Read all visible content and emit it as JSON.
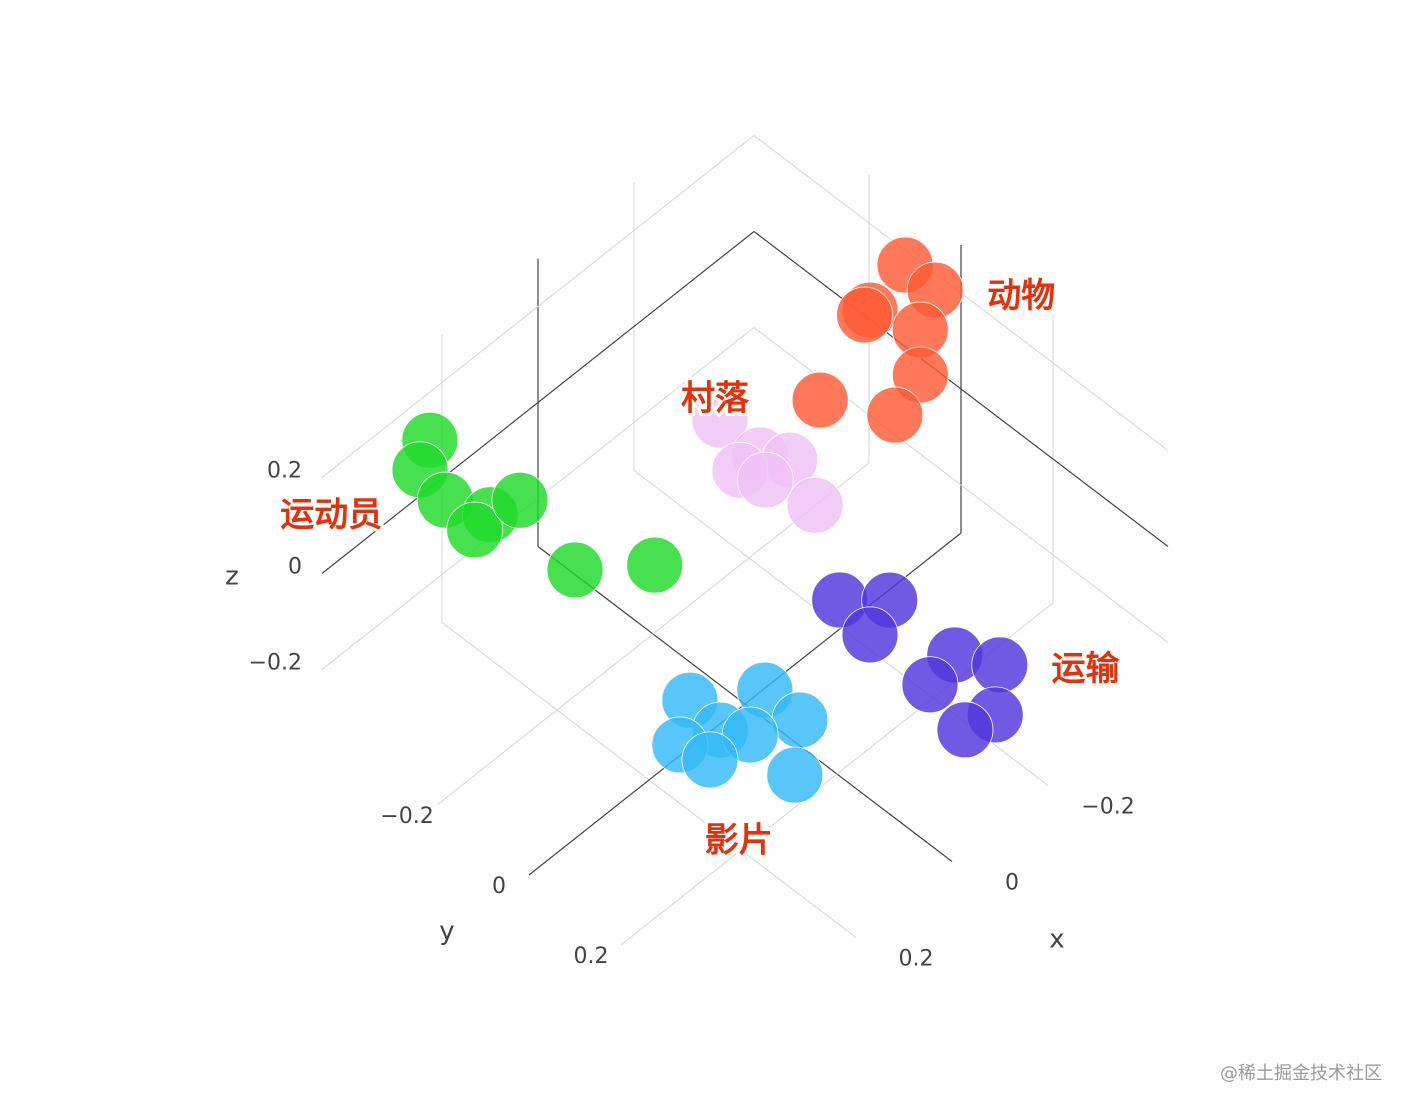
{
  "chart_data": {
    "type": "scatter3d",
    "xlim": [
      -0.45,
      0.45
    ],
    "ylim": [
      -0.45,
      0.45
    ],
    "zlim": [
      -0.3,
      0.3
    ],
    "xticks": [
      {
        "value": -0.2,
        "label": "−0.2"
      },
      0,
      0.2
    ],
    "yticks": [
      {
        "value": -0.2,
        "label": "−0.2"
      },
      0,
      0.2
    ],
    "zticks": [
      {
        "value": -0.2,
        "label": "−0.2"
      },
      0,
      0.2
    ],
    "xlabel": "x",
    "ylabel": "y",
    "zlabel": "z",
    "grid": true,
    "series": [
      {
        "name": "动物",
        "color": "#ff5a36",
        "x": [
          -0.366,
          -0.376,
          -0.289,
          -0.346,
          -0.322,
          -0.35,
          -0.296,
          -0.214
        ],
        "y": [
          -0.034,
          0.021,
          -0.03,
          0.02,
          -0.076,
          0.016,
          0.017,
          -0.06
        ],
        "z": [
          0.3,
          0.28,
          0.27,
          0.22,
          0.2,
          0.12,
          0.08,
          0.12
        ]
      },
      {
        "name": "村落",
        "color": "#efc2f7",
        "x": [
          -0.085,
          -0.124,
          -0.141,
          -0.096,
          -0.145,
          -0.115
        ],
        "y": [
          -0.143,
          -0.097,
          -0.05,
          -0.111,
          0.001,
          -0.076
        ],
        "z": [
          0.12,
          0.05,
          0.06,
          0.03,
          0.0,
          0.02
        ]
      },
      {
        "name": "运动员",
        "color": "#1edb2a",
        "x": [
          0.277,
          0.288,
          0.29,
          0.251,
          0.268,
          0.214,
          0.174,
          0.099
        ],
        "y": [
          -0.396,
          -0.406,
          -0.349,
          -0.292,
          -0.308,
          -0.266,
          -0.188,
          -0.093
        ],
        "z": [
          0.18,
          0.12,
          0.1,
          0.08,
          0.05,
          0.1,
          -0.02,
          0.0
        ]
      },
      {
        "name": "影片",
        "color": "#33b9f7",
        "x": [
          0.18,
          0.09,
          0.157,
          0.218,
          0.062,
          0.109,
          0.133,
          0.188
        ],
        "y": [
          0.068,
          0.137,
          0.11,
          0.086,
          0.184,
          0.222,
          0.15,
          0.12
        ],
        "z": [
          -0.1,
          -0.1,
          -0.15,
          -0.15,
          -0.15,
          -0.2,
          -0.15,
          -0.18
        ]
      },
      {
        "name": "运输",
        "color": "#5236dd",
        "x": [
          -0.043,
          -0.081,
          -0.04,
          -0.119,
          -0.073,
          -0.158,
          -0.112,
          -0.074
        ],
        "y": [
          0.161,
          0.23,
          0.23,
          0.332,
          0.326,
          0.389,
          0.427,
          0.401
        ],
        "z": [
          0.0,
          0.02,
          -0.02,
          -0.05,
          -0.08,
          -0.06,
          -0.1,
          -0.12
        ]
      }
    ]
  },
  "watermark": "@稀土掘金技术社区"
}
